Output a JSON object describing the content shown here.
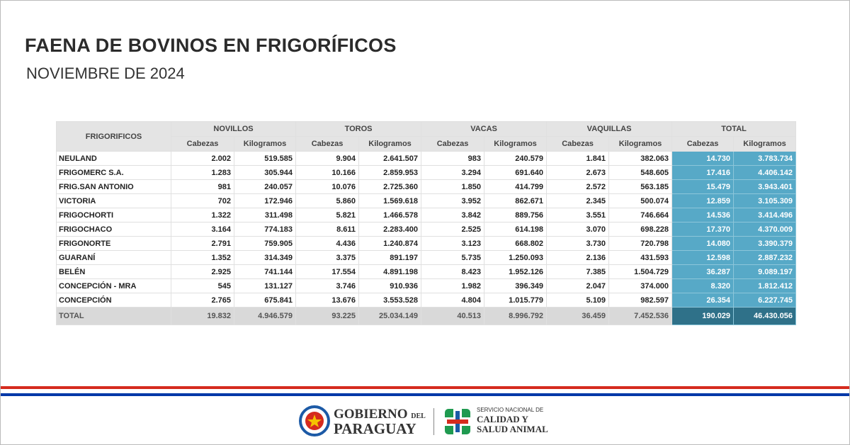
{
  "header": {
    "title": "FAENA DE BOVINOS EN FRIGORÍFICOS",
    "subtitle": "NOVIEMBRE DE 2024"
  },
  "table": {
    "corner": "FRIGORIFICOS",
    "groups": [
      "NOVILLOS",
      "TOROS",
      "VACAS",
      "VAQUILLAS",
      "TOTAL"
    ],
    "subheaders": [
      "Cabezas",
      "Kilogramos",
      "Cabezas",
      "Kilogramos",
      "Cabezas",
      "Kilogramos",
      "Cabezas",
      "Kilogramos",
      "Cabezas",
      "Kilogramos"
    ],
    "rows": [
      {
        "name": "NEULAND",
        "values": [
          "2.002",
          "519.585",
          "9.904",
          "2.641.507",
          "983",
          "240.579",
          "1.841",
          "382.063",
          "14.730",
          "3.783.734"
        ]
      },
      {
        "name": "FRIGOMERC S.A.",
        "values": [
          "1.283",
          "305.944",
          "10.166",
          "2.859.953",
          "3.294",
          "691.640",
          "2.673",
          "548.605",
          "17.416",
          "4.406.142"
        ]
      },
      {
        "name": "FRIG.SAN ANTONIO",
        "values": [
          "981",
          "240.057",
          "10.076",
          "2.725.360",
          "1.850",
          "414.799",
          "2.572",
          "563.185",
          "15.479",
          "3.943.401"
        ]
      },
      {
        "name": "VICTORIA",
        "values": [
          "702",
          "172.946",
          "5.860",
          "1.569.618",
          "3.952",
          "862.671",
          "2.345",
          "500.074",
          "12.859",
          "3.105.309"
        ]
      },
      {
        "name": "FRIGOCHORTI",
        "values": [
          "1.322",
          "311.498",
          "5.821",
          "1.466.578",
          "3.842",
          "889.756",
          "3.551",
          "746.664",
          "14.536",
          "3.414.496"
        ]
      },
      {
        "name": "FRIGOCHACO",
        "values": [
          "3.164",
          "774.183",
          "8.611",
          "2.283.400",
          "2.525",
          "614.198",
          "3.070",
          "698.228",
          "17.370",
          "4.370.009"
        ]
      },
      {
        "name": "FRIGONORTE",
        "values": [
          "2.791",
          "759.905",
          "4.436",
          "1.240.874",
          "3.123",
          "668.802",
          "3.730",
          "720.798",
          "14.080",
          "3.390.379"
        ]
      },
      {
        "name": "GUARANÍ",
        "values": [
          "1.352",
          "314.349",
          "3.375",
          "891.197",
          "5.735",
          "1.250.093",
          "2.136",
          "431.593",
          "12.598",
          "2.887.232"
        ]
      },
      {
        "name": "BELÉN",
        "values": [
          "2.925",
          "741.144",
          "17.554",
          "4.891.198",
          "8.423",
          "1.952.126",
          "7.385",
          "1.504.729",
          "36.287",
          "9.089.197"
        ]
      },
      {
        "name": "CONCEPCIÓN - MRA",
        "values": [
          "545",
          "131.127",
          "3.746",
          "910.936",
          "1.982",
          "396.349",
          "2.047",
          "374.000",
          "8.320",
          "1.812.412"
        ]
      },
      {
        "name": "CONCEPCIÓN",
        "values": [
          "2.765",
          "675.841",
          "13.676",
          "3.553.528",
          "4.804",
          "1.015.779",
          "5.109",
          "982.597",
          "26.354",
          "6.227.745"
        ]
      }
    ],
    "total": {
      "name": "TOTAL",
      "values": [
        "19.832",
        "4.946.579",
        "93.225",
        "25.034.149",
        "40.513",
        "8.996.792",
        "36.459",
        "7.452.536",
        "190.029",
        "46.430.056"
      ]
    }
  },
  "footer": {
    "gov_line1": "GOBIERNO",
    "gov_del": "DEL",
    "gov_line2": "PARAGUAY",
    "senacsa_line1": "SERVICIO NACIONAL DE",
    "senacsa_line2": "CALIDAD Y",
    "senacsa_line3": "SALUD ANIMAL"
  }
}
